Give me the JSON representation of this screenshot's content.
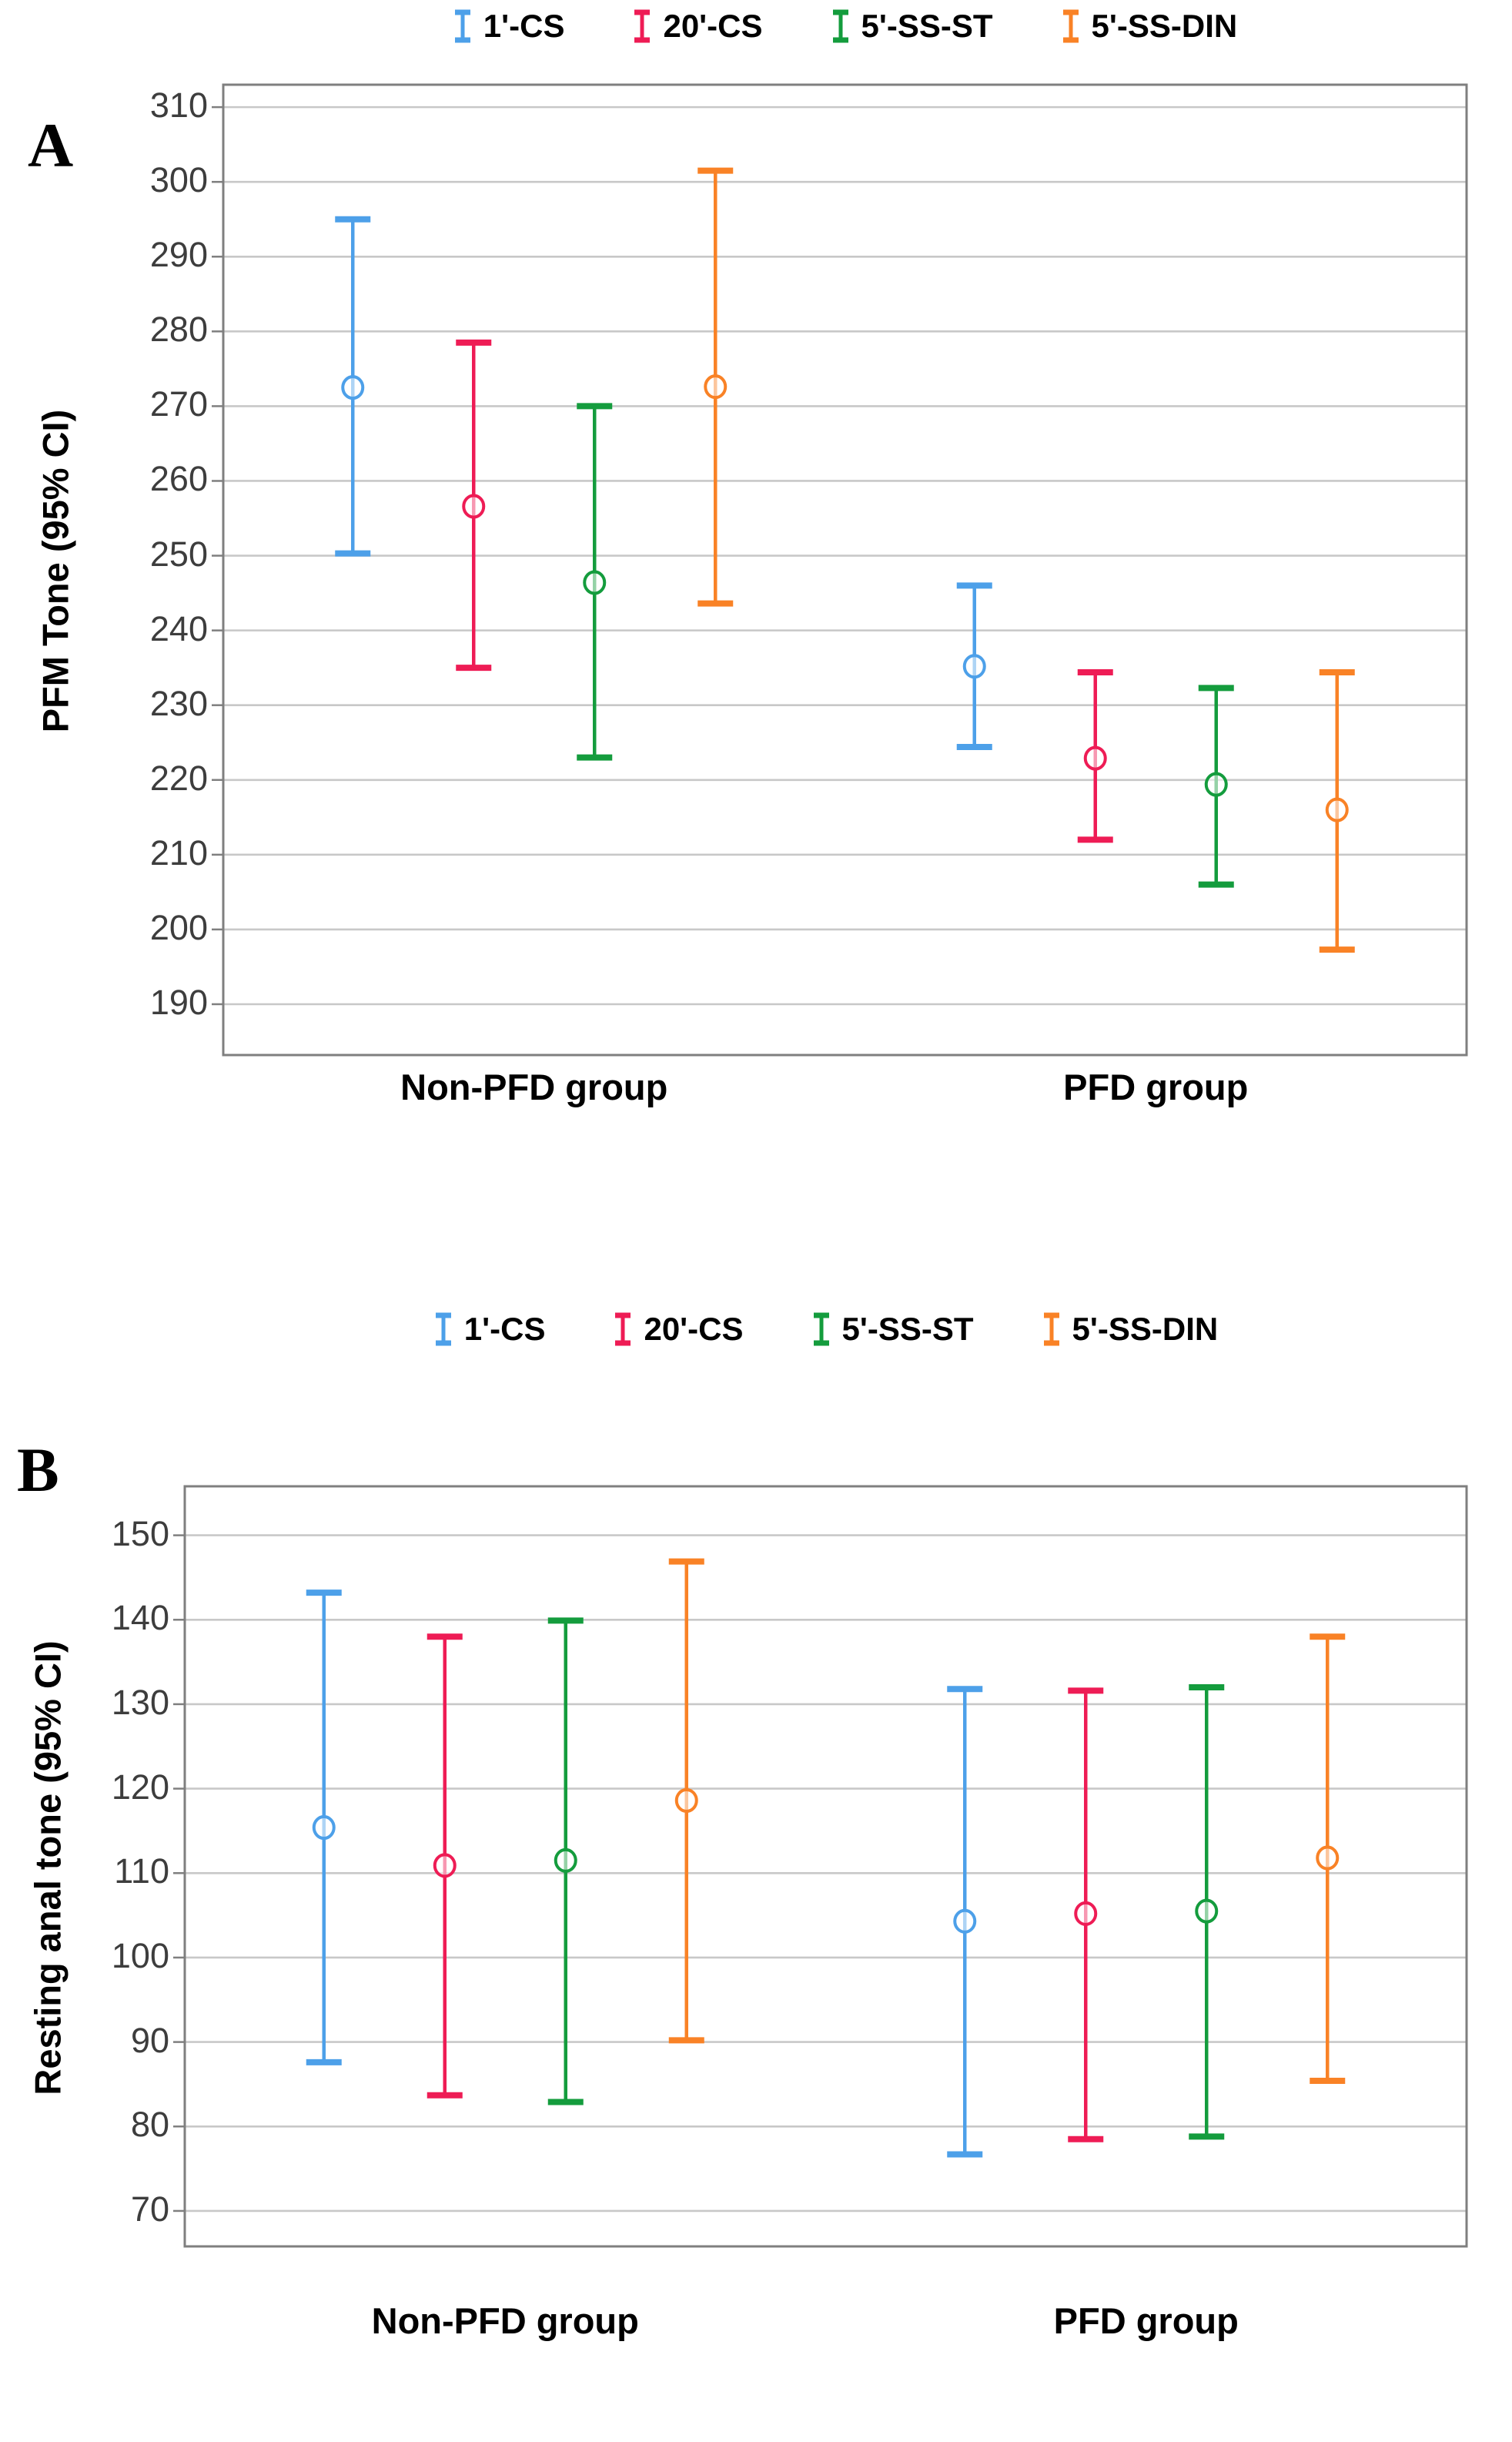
{
  "figure": {
    "background": "#ffffff",
    "gridline_color": "#c8c8c8",
    "frame_color": "#7f7f7f",
    "tick_label_color": "#3d3d3d"
  },
  "chart_data": [
    {
      "type": "errorbar",
      "panel_label": "A",
      "ylabel": "PFM Tone (95% CI)",
      "xlabel": "",
      "categories": [
        "Non-PFD group",
        "PFD group"
      ],
      "legend_position": "top",
      "grid": true,
      "y_ticks": [
        190,
        200,
        210,
        220,
        230,
        240,
        250,
        260,
        270,
        280,
        290,
        300,
        310
      ],
      "ylim": [
        183.2,
        313.0
      ],
      "series": [
        {
          "name": "1'-CS",
          "color": "#4da0e9",
          "points": [
            {
              "category": "Non-PFD group",
              "mean": 272.5,
              "ci_low": 250.3,
              "ci_high": 295.0
            },
            {
              "category": "PFD group",
              "mean": 235.2,
              "ci_low": 224.4,
              "ci_high": 246.0
            }
          ]
        },
        {
          "name": "20'-CS",
          "color": "#ee1c55",
          "points": [
            {
              "category": "Non-PFD group",
              "mean": 256.6,
              "ci_low": 235.0,
              "ci_high": 278.5
            },
            {
              "category": "PFD group",
              "mean": 222.9,
              "ci_low": 212.0,
              "ci_high": 234.4
            }
          ]
        },
        {
          "name": "5'-SS-ST",
          "color": "#149c3d",
          "points": [
            {
              "category": "Non-PFD group",
              "mean": 246.4,
              "ci_low": 223.0,
              "ci_high": 270.0
            },
            {
              "category": "PFD group",
              "mean": 219.4,
              "ci_low": 206.0,
              "ci_high": 232.3
            }
          ]
        },
        {
          "name": "5'-SS-DIN",
          "color": "#f98226",
          "points": [
            {
              "category": "Non-PFD group",
              "mean": 272.6,
              "ci_low": 243.6,
              "ci_high": 301.5
            },
            {
              "category": "PFD group",
              "mean": 216.0,
              "ci_low": 197.3,
              "ci_high": 234.4
            }
          ]
        }
      ]
    },
    {
      "type": "errorbar",
      "panel_label": "B",
      "ylabel": "Resting anal tone (95% CI)",
      "xlabel": "",
      "categories": [
        "Non-PFD group",
        "PFD group"
      ],
      "legend_position": "top",
      "grid": true,
      "y_ticks": [
        70,
        80,
        90,
        100,
        110,
        120,
        130,
        140,
        150
      ],
      "ylim": [
        65.8,
        155.8
      ],
      "series": [
        {
          "name": "1'-CS",
          "color": "#4da0e9",
          "points": [
            {
              "category": "Non-PFD group",
              "mean": 115.4,
              "ci_low": 87.6,
              "ci_high": 143.2
            },
            {
              "category": "PFD group",
              "mean": 104.3,
              "ci_low": 76.7,
              "ci_high": 131.8
            }
          ]
        },
        {
          "name": "20'-CS",
          "color": "#ee1c55",
          "points": [
            {
              "category": "Non-PFD group",
              "mean": 110.9,
              "ci_low": 83.7,
              "ci_high": 138.0
            },
            {
              "category": "PFD group",
              "mean": 105.2,
              "ci_low": 78.5,
              "ci_high": 131.6
            }
          ]
        },
        {
          "name": "5'-SS-ST",
          "color": "#149c3d",
          "points": [
            {
              "category": "Non-PFD group",
              "mean": 111.5,
              "ci_low": 82.9,
              "ci_high": 139.9
            },
            {
              "category": "PFD group",
              "mean": 105.5,
              "ci_low": 78.8,
              "ci_high": 132.0
            }
          ]
        },
        {
          "name": "5'-SS-DIN",
          "color": "#f98226",
          "points": [
            {
              "category": "Non-PFD group",
              "mean": 118.6,
              "ci_low": 90.2,
              "ci_high": 146.9
            },
            {
              "category": "PFD group",
              "mean": 111.8,
              "ci_low": 85.4,
              "ci_high": 138.0
            }
          ]
        }
      ]
    }
  ]
}
